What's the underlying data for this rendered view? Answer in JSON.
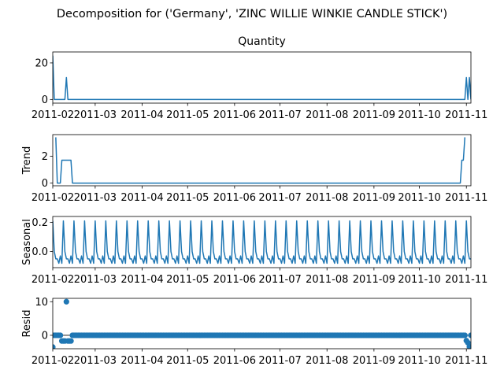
{
  "figure": {
    "suptitle": "Decomposition for ('Germany', 'ZINC WILLIE WINKIE  CANDLE STICK')",
    "line_color": "#1f77b4"
  },
  "chart_data": [
    {
      "type": "line",
      "title": "Quantity",
      "ylabel": "",
      "x_range": [
        "2011-02-01",
        "2011-11-04"
      ],
      "ylim": [
        -2,
        26
      ],
      "yticks": [
        0,
        20
      ],
      "xticks": [
        "2011-02",
        "2011-03",
        "2011-04",
        "2011-05",
        "2011-06",
        "2011-07",
        "2011-08",
        "2011-09",
        "2011-10",
        "2011-11"
      ],
      "series": [
        {
          "points": [
            [
              "2011-02-01",
              24
            ],
            [
              "2011-02-02",
              0
            ],
            [
              "2011-02-09",
              0
            ],
            [
              "2011-02-10",
              12
            ],
            [
              "2011-02-11",
              0
            ],
            [
              "2011-10-31",
              0
            ],
            [
              "2011-11-01",
              12
            ],
            [
              "2011-11-02",
              0
            ],
            [
              "2011-11-03",
              12
            ],
            [
              "2011-11-04",
              0
            ]
          ]
        }
      ]
    },
    {
      "type": "line",
      "title": "",
      "ylabel": "Trend",
      "x_range": [
        "2011-02-01",
        "2011-11-04"
      ],
      "ylim": [
        -0.2,
        3.6
      ],
      "yticks": [
        0,
        2
      ],
      "xticks": [
        "2011-02",
        "2011-03",
        "2011-04",
        "2011-05",
        "2011-06",
        "2011-07",
        "2011-08",
        "2011-09",
        "2011-10",
        "2011-11"
      ],
      "series": [
        {
          "points": [
            [
              "2011-02-03",
              3.4
            ],
            [
              "2011-02-04",
              0
            ],
            [
              "2011-02-06",
              0
            ],
            [
              "2011-02-07",
              1.7
            ],
            [
              "2011-02-13",
              1.7
            ],
            [
              "2011-02-14",
              0
            ],
            [
              "2011-10-28",
              0
            ],
            [
              "2011-10-29",
              1.7
            ],
            [
              "2011-10-30",
              1.7
            ],
            [
              "2011-10-31",
              3.4
            ]
          ]
        }
      ]
    },
    {
      "type": "line",
      "title": "",
      "ylabel": "Seasonal",
      "x_range": [
        "2011-02-01",
        "2011-11-04"
      ],
      "ylim": [
        -0.11,
        0.24
      ],
      "yticks": [
        0.0,
        0.2
      ],
      "ytick_labels": [
        "0.0",
        "0.2"
      ],
      "xticks": [
        "2011-02",
        "2011-03",
        "2011-04",
        "2011-05",
        "2011-06",
        "2011-07",
        "2011-08",
        "2011-09",
        "2011-10",
        "2011-11"
      ],
      "period_days": 7,
      "start": "2011-02-01",
      "end": "2011-11-04",
      "pattern": [
        0.21,
        0.0,
        -0.05,
        -0.05,
        -0.08,
        -0.03,
        -0.08
      ]
    },
    {
      "type": "scatter",
      "title": "",
      "ylabel": "Resid",
      "x_range": [
        "2011-02-01",
        "2011-11-04"
      ],
      "ylim": [
        -4,
        11
      ],
      "yticks": [
        0,
        10
      ],
      "xticks": [
        "2011-02",
        "2011-03",
        "2011-04",
        "2011-05",
        "2011-06",
        "2011-07",
        "2011-08",
        "2011-09",
        "2011-10",
        "2011-11"
      ],
      "baseline": 0,
      "start": "2011-02-01",
      "end": "2011-11-04",
      "default_value": 0,
      "special_points": [
        [
          "2011-02-01",
          -3.5
        ],
        [
          "2011-02-07",
          -1.7
        ],
        [
          "2011-02-08",
          -1.7
        ],
        [
          "2011-02-09",
          -1.7
        ],
        [
          "2011-02-10",
          10
        ],
        [
          "2011-02-11",
          -1.7
        ],
        [
          "2011-02-12",
          -1.7
        ],
        [
          "2011-02-13",
          -1.7
        ],
        [
          "2011-11-01",
          -1.6
        ],
        [
          "2011-11-02",
          -2.2
        ],
        [
          "2011-11-03",
          -3.4
        ]
      ]
    }
  ]
}
